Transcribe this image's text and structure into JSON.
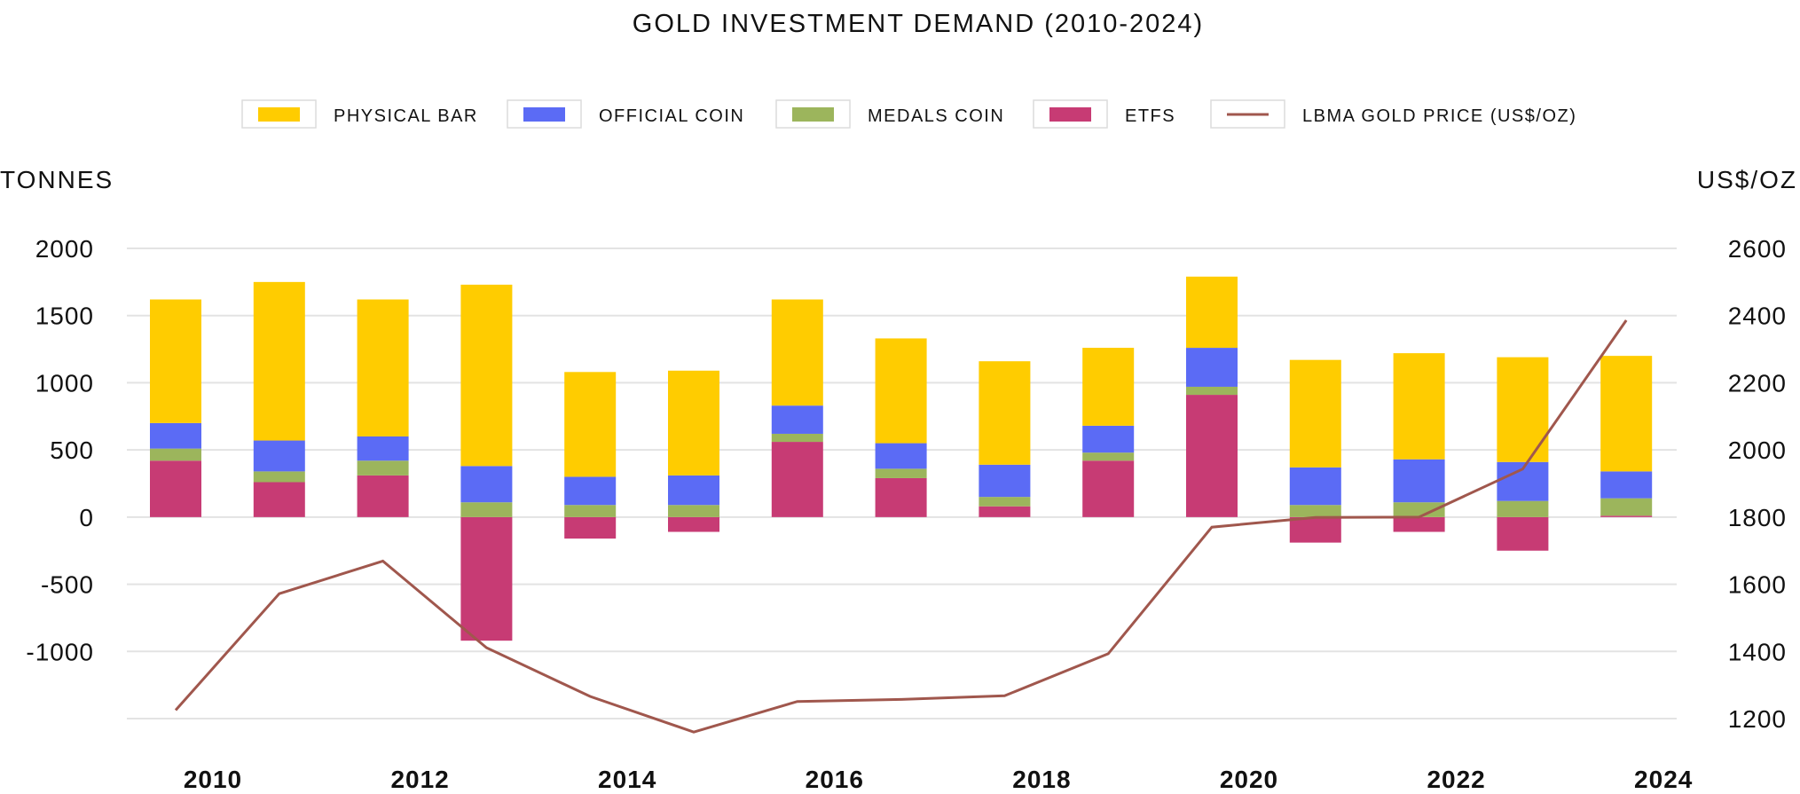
{
  "chart_data": {
    "type": "bar",
    "title": "GOLD INVESTMENT DEMAND (2010-2024)",
    "ylabel_left": "TONNES",
    "ylabel_right": "US$/OZ",
    "x": [
      2010,
      2011,
      2012,
      2013,
      2014,
      2015,
      2016,
      2017,
      2018,
      2019,
      2020,
      2021,
      2022,
      2023,
      2024
    ],
    "x_tick_labels": [
      "2010",
      "2012",
      "2014",
      "2016",
      "2018",
      "2020",
      "2022",
      "2024"
    ],
    "ylim_left": [
      -1500,
      2000
    ],
    "ylim_right": [
      1200,
      2600
    ],
    "left_ticks": [
      "2000",
      "1500",
      "1000",
      "500",
      "0",
      "-500",
      "-1000"
    ],
    "right_ticks": [
      "2600",
      "2400",
      "2200",
      "2000",
      "1800",
      "1600",
      "1400",
      "1200"
    ],
    "grid": true,
    "legend_position": "top",
    "series": [
      {
        "name": "PHYSICAL BAR",
        "kind": "bar",
        "axis": "left",
        "color": "#FFCC00",
        "values": [
          920,
          1180,
          1020,
          1350,
          780,
          780,
          790,
          780,
          770,
          580,
          530,
          800,
          790,
          780,
          860
        ]
      },
      {
        "name": "OFFICIAL COIN",
        "kind": "bar",
        "axis": "left",
        "color": "#5B6BF5",
        "values": [
          190,
          230,
          180,
          270,
          210,
          220,
          210,
          190,
          240,
          200,
          290,
          280,
          320,
          290,
          200
        ]
      },
      {
        "name": "MEDALS COIN",
        "kind": "bar",
        "axis": "left",
        "color": "#9CB55C",
        "values": [
          90,
          80,
          110,
          110,
          90,
          90,
          60,
          70,
          70,
          60,
          60,
          90,
          110,
          120,
          130
        ]
      },
      {
        "name": "ETFS",
        "kind": "bar",
        "axis": "left",
        "color": "#C73B74",
        "values": [
          420,
          260,
          310,
          -920,
          -160,
          -110,
          560,
          290,
          80,
          420,
          910,
          -190,
          -110,
          -250,
          10
        ]
      },
      {
        "name": "LBMA GOLD PRICE (US$/OZ)",
        "kind": "line",
        "axis": "right",
        "color": "#A0574D",
        "values": [
          1225,
          1572,
          1669,
          1411,
          1266,
          1160,
          1251,
          1257,
          1268,
          1393,
          1770,
          1799,
          1800,
          1943,
          2386
        ]
      }
    ]
  }
}
